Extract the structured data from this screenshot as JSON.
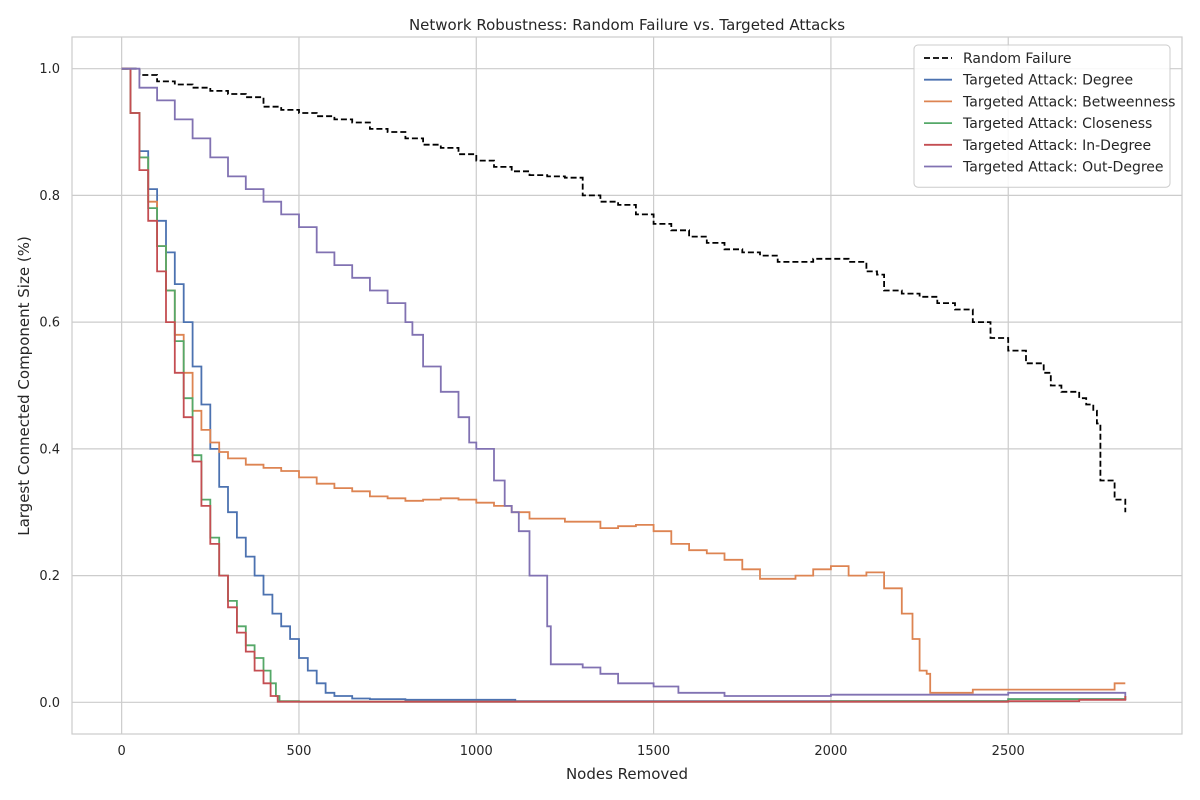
{
  "chart_data": {
    "type": "line",
    "title": "Network Robustness: Random Failure vs. Targeted Attacks",
    "xlabel": "Nodes Removed",
    "ylabel": "Largest Connected Component Size (%)",
    "xlim": [
      -140,
      2990
    ],
    "ylim": [
      -0.05,
      1.05
    ],
    "xticks": [
      0,
      500,
      1000,
      1500,
      2000,
      2500
    ],
    "yticks": [
      0.0,
      0.2,
      0.4,
      0.6,
      0.8,
      1.0
    ],
    "xtick_labels": [
      "0",
      "500",
      "1000",
      "1500",
      "2000",
      "2500"
    ],
    "ytick_labels": [
      "0.0",
      "0.2",
      "0.4",
      "0.6",
      "0.8",
      "1.0"
    ],
    "grid": true,
    "legend_position": "top-right",
    "series": [
      {
        "name": "Random Failure",
        "color": "#000000",
        "dashed": true,
        "x": [
          0,
          50,
          100,
          150,
          200,
          250,
          300,
          350,
          400,
          450,
          500,
          550,
          600,
          650,
          700,
          750,
          800,
          850,
          900,
          950,
          1000,
          1050,
          1100,
          1150,
          1200,
          1250,
          1300,
          1350,
          1400,
          1450,
          1500,
          1550,
          1600,
          1650,
          1700,
          1750,
          1800,
          1850,
          1900,
          1950,
          2000,
          2050,
          2100,
          2130,
          2150,
          2200,
          2250,
          2300,
          2350,
          2400,
          2450,
          2500,
          2550,
          2600,
          2620,
          2650,
          2700,
          2720,
          2740,
          2750,
          2760,
          2800,
          2830
        ],
        "y": [
          1.0,
          0.99,
          0.98,
          0.975,
          0.97,
          0.965,
          0.96,
          0.955,
          0.94,
          0.935,
          0.93,
          0.925,
          0.92,
          0.915,
          0.905,
          0.9,
          0.89,
          0.88,
          0.875,
          0.865,
          0.855,
          0.845,
          0.838,
          0.832,
          0.83,
          0.828,
          0.8,
          0.79,
          0.785,
          0.77,
          0.755,
          0.745,
          0.735,
          0.725,
          0.715,
          0.71,
          0.705,
          0.695,
          0.695,
          0.7,
          0.7,
          0.695,
          0.68,
          0.675,
          0.65,
          0.645,
          0.64,
          0.63,
          0.62,
          0.6,
          0.575,
          0.555,
          0.535,
          0.52,
          0.5,
          0.49,
          0.48,
          0.47,
          0.46,
          0.44,
          0.35,
          0.32,
          0.3
        ]
      },
      {
        "name": "Targeted Attack: Degree",
        "color": "#4c72b0",
        "dashed": false,
        "x": [
          0,
          25,
          50,
          75,
          100,
          125,
          150,
          175,
          200,
          225,
          250,
          275,
          300,
          325,
          350,
          375,
          400,
          425,
          450,
          475,
          500,
          525,
          550,
          575,
          600,
          650,
          700,
          800,
          1000,
          1100,
          1110,
          1200,
          1500,
          2000,
          2500,
          2830
        ],
        "y": [
          1.0,
          0.93,
          0.87,
          0.81,
          0.76,
          0.71,
          0.66,
          0.6,
          0.53,
          0.47,
          0.4,
          0.34,
          0.3,
          0.26,
          0.23,
          0.2,
          0.17,
          0.14,
          0.12,
          0.1,
          0.07,
          0.05,
          0.03,
          0.015,
          0.01,
          0.006,
          0.005,
          0.004,
          0.004,
          0.004,
          0.002,
          0.002,
          0.002,
          0.002,
          0.005,
          0.01
        ]
      },
      {
        "name": "Targeted Attack: Betweenness",
        "color": "#dd8452",
        "dashed": false,
        "x": [
          0,
          25,
          50,
          75,
          100,
          125,
          150,
          175,
          200,
          225,
          250,
          275,
          300,
          350,
          400,
          450,
          500,
          550,
          600,
          650,
          700,
          750,
          800,
          850,
          900,
          950,
          1000,
          1050,
          1100,
          1150,
          1200,
          1250,
          1300,
          1350,
          1400,
          1450,
          1500,
          1550,
          1600,
          1650,
          1700,
          1750,
          1800,
          1850,
          1900,
          1950,
          2000,
          2050,
          2100,
          2150,
          2200,
          2230,
          2250,
          2270,
          2280,
          2400,
          2600,
          2800,
          2830
        ],
        "y": [
          1.0,
          0.93,
          0.86,
          0.79,
          0.72,
          0.65,
          0.58,
          0.52,
          0.46,
          0.43,
          0.41,
          0.395,
          0.385,
          0.375,
          0.37,
          0.365,
          0.355,
          0.345,
          0.338,
          0.333,
          0.325,
          0.322,
          0.318,
          0.32,
          0.322,
          0.32,
          0.315,
          0.31,
          0.3,
          0.29,
          0.29,
          0.285,
          0.285,
          0.275,
          0.278,
          0.28,
          0.27,
          0.25,
          0.24,
          0.235,
          0.225,
          0.21,
          0.195,
          0.195,
          0.2,
          0.21,
          0.215,
          0.2,
          0.205,
          0.18,
          0.14,
          0.1,
          0.05,
          0.045,
          0.015,
          0.02,
          0.02,
          0.03,
          0.03
        ]
      },
      {
        "name": "Targeted Attack: Closeness",
        "color": "#55a868",
        "dashed": false,
        "x": [
          0,
          25,
          50,
          75,
          100,
          125,
          150,
          175,
          200,
          225,
          250,
          275,
          300,
          325,
          350,
          375,
          400,
          420,
          435,
          445,
          500,
          1000,
          1500,
          2000,
          2500,
          2830
        ],
        "y": [
          1.0,
          0.93,
          0.86,
          0.78,
          0.72,
          0.65,
          0.57,
          0.48,
          0.39,
          0.32,
          0.26,
          0.2,
          0.16,
          0.12,
          0.09,
          0.07,
          0.05,
          0.03,
          0.01,
          0.002,
          0.001,
          0.001,
          0.001,
          0.002,
          0.005,
          0.01
        ]
      },
      {
        "name": "Targeted Attack: In-Degree",
        "color": "#c44e52",
        "dashed": false,
        "x": [
          0,
          25,
          50,
          75,
          100,
          125,
          150,
          175,
          200,
          225,
          250,
          275,
          300,
          325,
          350,
          375,
          400,
          420,
          440,
          500,
          1000,
          1500,
          2000,
          2500,
          2700,
          2830
        ],
        "y": [
          1.0,
          0.93,
          0.84,
          0.76,
          0.68,
          0.6,
          0.52,
          0.45,
          0.38,
          0.31,
          0.25,
          0.2,
          0.15,
          0.11,
          0.08,
          0.05,
          0.03,
          0.01,
          0.001,
          0.001,
          0.001,
          0.001,
          0.001,
          0.002,
          0.004,
          0.01
        ]
      },
      {
        "name": "Targeted Attack: Out-Degree",
        "color": "#8172b2",
        "dashed": false,
        "x": [
          0,
          50,
          100,
          150,
          200,
          250,
          300,
          350,
          400,
          450,
          500,
          550,
          600,
          650,
          700,
          750,
          800,
          820,
          850,
          900,
          950,
          980,
          1000,
          1050,
          1080,
          1100,
          1120,
          1150,
          1180,
          1200,
          1210,
          1250,
          1300,
          1350,
          1400,
          1500,
          1550,
          1570,
          1700,
          2000,
          2300,
          2500,
          2700,
          2800,
          2830
        ],
        "y": [
          1.0,
          0.97,
          0.95,
          0.92,
          0.89,
          0.86,
          0.83,
          0.81,
          0.79,
          0.77,
          0.75,
          0.71,
          0.69,
          0.67,
          0.65,
          0.63,
          0.6,
          0.58,
          0.53,
          0.49,
          0.45,
          0.41,
          0.4,
          0.35,
          0.31,
          0.3,
          0.27,
          0.2,
          0.2,
          0.12,
          0.06,
          0.06,
          0.055,
          0.045,
          0.03,
          0.025,
          0.025,
          0.015,
          0.01,
          0.012,
          0.012,
          0.015,
          0.015,
          0.015,
          0.01
        ]
      }
    ]
  }
}
